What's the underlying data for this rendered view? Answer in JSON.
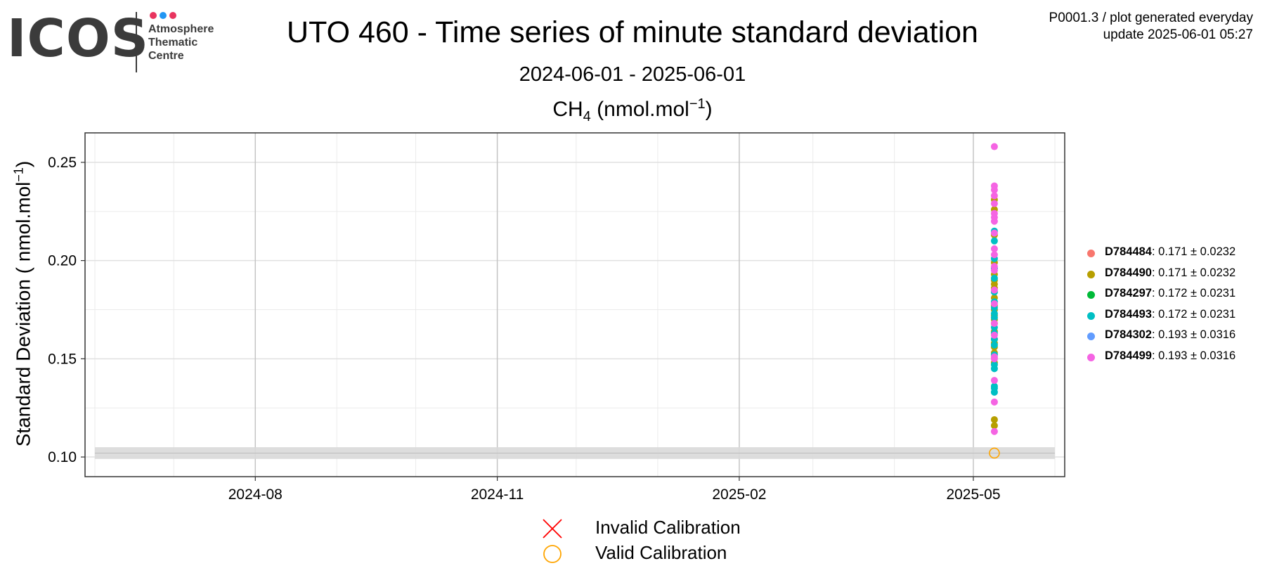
{
  "logo": {
    "wordmark": "ICOS",
    "lines": [
      "Atmosphere",
      "Thematic",
      "Centre"
    ],
    "dot_colors": [
      "#e8345f",
      "#2196f3",
      "#e8345f"
    ]
  },
  "header": {
    "title": "UTO 460 - Time series of minute standard deviation",
    "subtitle": "2024-06-01 - 2025-06-01",
    "meta_line1": "P0001.3 / plot generated everyday",
    "meta_line2": "update  2025-06-01 05:27"
  },
  "plot_title": {
    "species": "CH",
    "subscript": "4",
    "unit_pre": "(nmol.mol",
    "superscript": "−1",
    "unit_post": ")"
  },
  "y_axis_label": {
    "text": "Standard Deviation ( nmol.mol",
    "superscript": "−1",
    "close": ")"
  },
  "legend": {
    "items": [
      {
        "name": "D784484",
        "stats": ": 0.171 ± 0.0232",
        "color": "#f8766d"
      },
      {
        "name": "D784490",
        "stats": ": 0.171 ± 0.0232",
        "color": "#b79f00"
      },
      {
        "name": "D784297",
        "stats": ": 0.172 ± 0.0231",
        "color": "#00ba38"
      },
      {
        "name": "D784493",
        "stats": ": 0.172 ± 0.0231",
        "color": "#00bfc4"
      },
      {
        "name": "D784302",
        "stats": ": 0.193 ± 0.0316",
        "color": "#619cff"
      },
      {
        "name": "D784499",
        "stats": ": 0.193 ± 0.0316",
        "color": "#f564e3"
      }
    ]
  },
  "calibration_legend": {
    "invalid_label": "Invalid Calibration",
    "valid_label": "Valid Calibration",
    "invalid_color": "#ff0000",
    "valid_color": "#ffa500"
  },
  "chart_data": {
    "type": "scatter",
    "x_axis": {
      "type": "date",
      "range": [
        "2024-06-01",
        "2025-06-01"
      ],
      "ticks": [
        "2024-08-01",
        "2024-11-01",
        "2025-02-01",
        "2025-05-01"
      ],
      "tick_labels": [
        "2024-08",
        "2024-11",
        "2025-02",
        "2025-05"
      ]
    },
    "y_axis": {
      "range": [
        0.09,
        0.265
      ],
      "ticks": [
        0.1,
        0.15,
        0.2,
        0.25
      ],
      "tick_labels": [
        "0.10",
        "0.15",
        "0.20",
        "0.25"
      ]
    },
    "grid": true,
    "legend_position": "right",
    "reference_band": {
      "y_min": 0.099,
      "y_max": 0.105,
      "color": "#d9d9d9"
    },
    "series": [
      {
        "name": "D784490",
        "color": "#b79f00",
        "date": "2025-05-09",
        "values": [
          0.231,
          0.226,
          0.213,
          0.199,
          0.193,
          0.19,
          0.188,
          0.186,
          0.181,
          0.177,
          0.175,
          0.172,
          0.17,
          0.168,
          0.164,
          0.16,
          0.158,
          0.156,
          0.153,
          0.148,
          0.119,
          0.116
        ]
      },
      {
        "name": "D784493",
        "color": "#00bfc4",
        "date": "2025-05-09",
        "values": [
          0.215,
          0.21,
          0.201,
          0.196,
          0.191,
          0.184,
          0.179,
          0.176,
          0.173,
          0.171,
          0.166,
          0.163,
          0.16,
          0.157,
          0.152,
          0.147,
          0.145,
          0.136,
          0.135,
          0.133
        ]
      },
      {
        "name": "D784499",
        "color": "#f564e3",
        "date": "2025-05-09",
        "values": [
          0.258,
          0.238,
          0.236,
          0.233,
          0.229,
          0.224,
          0.222,
          0.22,
          0.214,
          0.206,
          0.203,
          0.197,
          0.195,
          0.185,
          0.178,
          0.168,
          0.162,
          0.151,
          0.15,
          0.139,
          0.128,
          0.113
        ]
      }
    ],
    "calibration_points": [
      {
        "status": "valid",
        "date": "2025-05-09",
        "value": 0.102
      }
    ]
  }
}
